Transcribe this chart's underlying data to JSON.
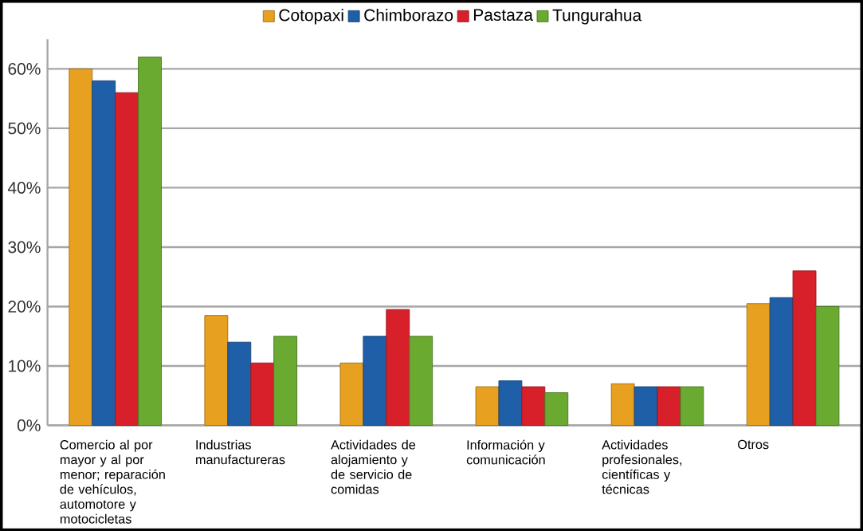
{
  "chart_data": {
    "type": "bar",
    "categories": [
      "Comercio al por mayor y al por menor; reparación de vehículos, automotore y motocicletas",
      "Industrias manufactureras",
      "Actividades de alojamiento y de servicio de comidas",
      "Información y comunicación",
      "Actividades profesionales, científicas y técnicas",
      "Otros"
    ],
    "series": [
      {
        "name": "Cotopaxi",
        "color": "#e8a020",
        "values": [
          60,
          18.5,
          10.5,
          6.5,
          7,
          20.5
        ]
      },
      {
        "name": "Chimborazo",
        "color": "#1f5fa8",
        "values": [
          58,
          14,
          15,
          7.5,
          6.5,
          21.5
        ]
      },
      {
        "name": "Pastaza",
        "color": "#d8202a",
        "values": [
          56,
          10.5,
          19.5,
          6.5,
          6.5,
          26
        ]
      },
      {
        "name": "Tungurahua",
        "color": "#6aaa30",
        "values": [
          62,
          15,
          15,
          5.5,
          6.5,
          20
        ]
      }
    ],
    "ylim": [
      0,
      65
    ],
    "yticks": [
      {
        "value": 0,
        "label": "0%"
      },
      {
        "value": 10,
        "label": "10%"
      },
      {
        "value": 20,
        "label": "20%"
      },
      {
        "value": 30,
        "label": "30%"
      },
      {
        "value": 40,
        "label": "40%"
      },
      {
        "value": 50,
        "label": "50%"
      },
      {
        "value": 60,
        "label": "60%"
      }
    ],
    "grid": "y",
    "legend": "top"
  }
}
